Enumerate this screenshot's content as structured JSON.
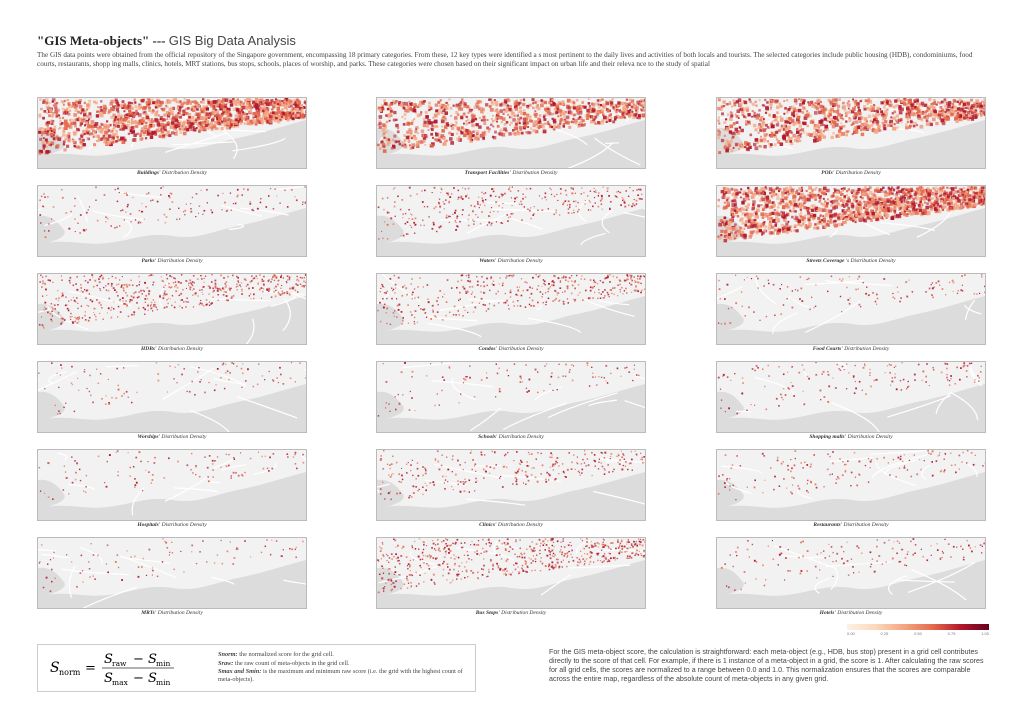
{
  "header": {
    "title": "\"GIS Meta-objects\" ---",
    "subtitle": "GIS Big Data Analysis",
    "intro": "The GIS data points were obtained from the official repository of the Singapore government, encompassing 18 primary categories. From these, 12 key types were identified a s most pertinent to the daily lives and activities of both locals and tourists. The selected categories include public housing (HDB), condominiums, food courts, restaurants, shopp ing malls, clinics, hotels, MRT stations, bus stops, schools, places of worship, and parks. These categories were chosen based on their significant impact on urban life and their releva nce to the study of spatial"
  },
  "caption_suffix": "Distribution Density",
  "maps": [
    {
      "name": "Buildings'",
      "suffix": "Distribution Density",
      "density": 0.95
    },
    {
      "name": "Transport Facilities'",
      "suffix": "Distribution Density",
      "density": 0.6
    },
    {
      "name": "POIs'",
      "suffix": "Distribution Density",
      "density": 0.65
    },
    {
      "name": "Parks'",
      "suffix": "Distribution Density",
      "density": 0.08
    },
    {
      "name": "Waters'",
      "suffix": "Distribution Density",
      "density": 0.2
    },
    {
      "name": "Streets Coverage",
      "suffix": "'s Distribution Density",
      "density": 1.0
    },
    {
      "name": "HDBs'",
      "suffix": "Distribution Density",
      "density": 0.35
    },
    {
      "name": "Condos'",
      "suffix": "Distribution Density",
      "density": 0.25
    },
    {
      "name": "Food Courts'",
      "suffix": "Distribution Density",
      "density": 0.06
    },
    {
      "name": "Worships'",
      "suffix": "Distribution Density",
      "density": 0.05
    },
    {
      "name": "Schools'",
      "suffix": "Distribution Density",
      "density": 0.05
    },
    {
      "name": "Shopping malls'",
      "suffix": "Distribution Density",
      "density": 0.08
    },
    {
      "name": "Hospitals'",
      "suffix": "Distribution Density",
      "density": 0.05
    },
    {
      "name": "Clinics'",
      "suffix": "Distribution Density",
      "density": 0.18
    },
    {
      "name": "Restaurants'",
      "suffix": "Distribution Density",
      "density": 0.08
    },
    {
      "name": "MRTs'",
      "suffix": "Distribution Density",
      "density": 0.04
    },
    {
      "name": "Bus Stops'",
      "suffix": "Distribution Density",
      "density": 0.4
    },
    {
      "name": "Hotels'",
      "suffix": "Distribution Density",
      "density": 0.07
    }
  ],
  "legend": {
    "ticks": [
      "0.00",
      "0.25",
      "0.50",
      "0.75",
      "1.00"
    ],
    "colors": [
      "#fdf0e6",
      "#fbd9bd",
      "#f4a582",
      "#e56b4d",
      "#b2182b",
      "#67001f"
    ]
  },
  "formula": {
    "lhs": "S",
    "lhs_sub": "norm",
    "num_a": "S",
    "num_a_sub": "raw",
    "num_b": "S",
    "num_b_sub": "min",
    "den_a": "S",
    "den_a_sub": "max",
    "den_b": "S",
    "den_b_sub": "min",
    "equals": "=",
    "minus": "−"
  },
  "definitions": [
    {
      "term": "Snorm:",
      "text": "the normalized score for the grid cell."
    },
    {
      "term": "Sraw:",
      "text": "the raw count of meta-objects in the grid cell."
    },
    {
      "term": "Smax and Smin:",
      "text": "is the maximum and minimum raw score (i.e. the grid with the highest count of meta-objects)."
    }
  ],
  "explanation": "For the GIS meta-object score, the calculation is straightforward: each meta-object (e.g., HDB, bus stop) present in a grid cell contributes directly to the score of that cell. For example, if there is 1 instance of a meta-object in a grid, the score is 1. After calculating the raw scores for all grid cells, the scores are normalized to a range between 0.0 and 1.0. This normalization ensures that the scores are comparable across the entire map, regardless of the absolute count of meta-objects in any given grid.",
  "colors": {
    "land": "#f2f2f2",
    "water": "#dcdcdc",
    "dot_light": "#f4a582",
    "dot_mid": "#e56b4d",
    "dot_dark": "#b2182b"
  }
}
